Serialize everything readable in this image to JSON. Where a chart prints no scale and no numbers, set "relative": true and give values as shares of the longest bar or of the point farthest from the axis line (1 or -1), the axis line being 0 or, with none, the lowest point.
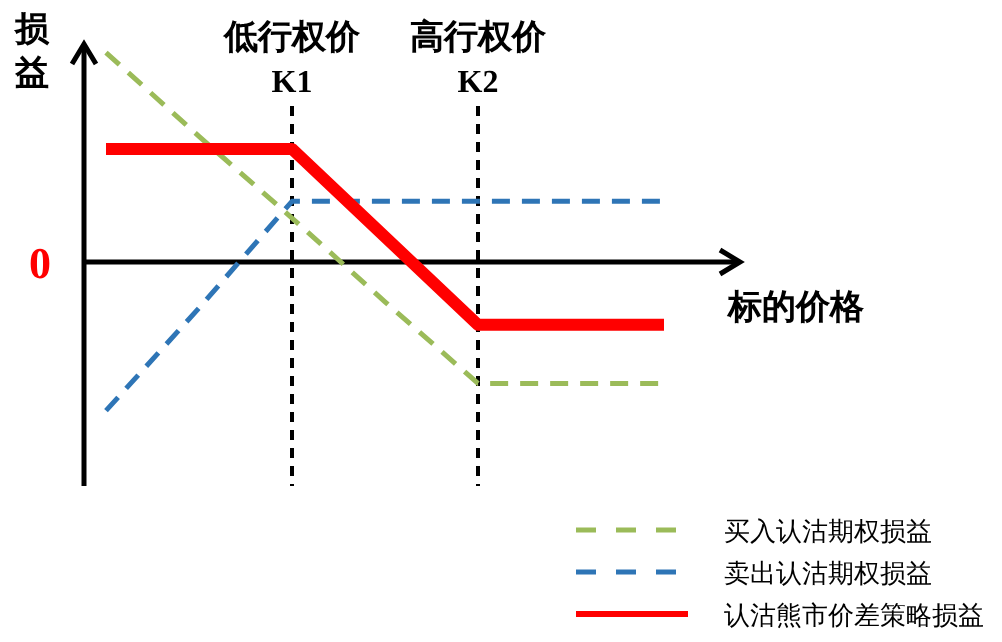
{
  "chart_data": {
    "type": "line",
    "relative": true,
    "xlabel": "标的价格",
    "ylabel": "损益",
    "legend": "bottom right",
    "marker": "none",
    "categories": [
      null,
      null,
      "K1",
      null,
      "K2",
      null,
      null
    ],
    "annotations": [
      "0"
    ],
    "ref_lines": [
      {
        "axis": "x",
        "value": "K1",
        "label": "低行权价",
        "color": "#000000",
        "line_style": "dashed"
      },
      {
        "axis": "x",
        "value": "K2",
        "label": "高行权价",
        "color": "#000000",
        "line_style": "dashed"
      }
    ],
    "series": [
      {
        "name": "买入认沽期权损益",
        "color": "#9bbb59",
        "line_style": "dashed",
        "values": [
          1,
          0.6,
          0.21,
          -0.19,
          -0.58,
          -0.58,
          -0.58
        ]
      },
      {
        "name": "卖出认沽期权损益",
        "color": "#2e75b6",
        "line_style": "dashed",
        "values": [
          -0.71,
          -0.22,
          0.29,
          0.29,
          0.29,
          0.29,
          0.29
        ]
      },
      {
        "name": "认沽熊市价差策略损益",
        "color": "#ff0000",
        "line_style": "solid",
        "values": [
          0.54,
          0.54,
          0.54,
          0.12,
          -0.3,
          -0.3,
          -0.3
        ]
      }
    ]
  }
}
